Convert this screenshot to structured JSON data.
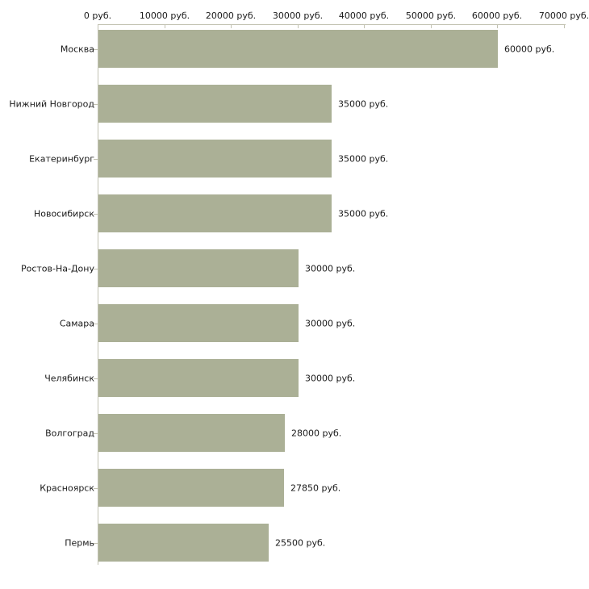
{
  "chart_data": {
    "type": "bar",
    "orientation": "horizontal",
    "title": "",
    "xlabel": "",
    "ylabel": "",
    "categories": [
      "Москва",
      "Нижний Новгород",
      "Екатеринбург",
      "Новосибирск",
      "Ростов-На-Дону",
      "Самара",
      "Челябинск",
      "Волгоград",
      "Красноярск",
      "Пермь"
    ],
    "values": [
      60000,
      35000,
      35000,
      35000,
      30000,
      30000,
      30000,
      28000,
      27850,
      25500
    ],
    "value_labels": [
      "60000 руб.",
      "35000 руб.",
      "35000 руб.",
      "35000 руб.",
      "30000 руб.",
      "30000 руб.",
      "30000 руб.",
      "28000 руб.",
      "27850 руб.",
      "25500 руб."
    ],
    "x_ticks": [
      0,
      10000,
      20000,
      30000,
      40000,
      50000,
      60000,
      70000
    ],
    "x_tick_labels": [
      "0 руб.",
      "10000 руб.",
      "20000 руб.",
      "30000 руб.",
      "40000 руб.",
      "50000 руб.",
      "60000 руб.",
      "70000 руб."
    ],
    "xlim": [
      0,
      70000
    ],
    "axis_position": "top",
    "grid": false,
    "legend": false,
    "colors": {
      "bar_fill": "#abb096",
      "axis_line": "#c2c2b2",
      "tick_mark": "#c2c2b2",
      "text": "#1a1a1a",
      "background": "#ffffff"
    }
  }
}
